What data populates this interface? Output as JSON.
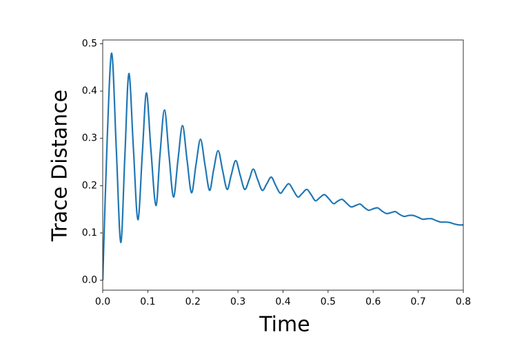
{
  "chart_data": {
    "type": "line",
    "x_label": "Time",
    "y_label": "Trace Distance",
    "color": "#1f77b4",
    "xlim": [
      0,
      0.8
    ],
    "ylim": [
      -0.021,
      0.508
    ],
    "xticks": [
      {
        "value": 0,
        "label": "0.0"
      },
      0.1,
      0.2,
      0.3,
      0.4,
      0.5,
      0.6,
      0.7,
      0.8
    ],
    "yticks": [
      {
        "value": 0,
        "label": "0.0"
      },
      0.1,
      0.2,
      0.3,
      0.4,
      0.5
    ],
    "x": [
      0,
      0.01,
      0.02,
      0.03,
      0.04,
      0.049,
      0.058,
      0.068,
      0.078,
      0.088,
      0.097,
      0.107,
      0.118,
      0.127,
      0.137,
      0.147,
      0.157,
      0.167,
      0.177,
      0.187,
      0.197,
      0.207,
      0.217,
      0.227,
      0.237,
      0.246,
      0.256,
      0.266,
      0.276,
      0.285,
      0.295,
      0.305,
      0.315,
      0.325,
      0.334,
      0.344,
      0.354,
      0.364,
      0.374,
      0.384,
      0.394,
      0.403,
      0.413,
      0.423,
      0.433,
      0.443,
      0.453,
      0.463,
      0.472,
      0.482,
      0.492,
      0.502,
      0.512,
      0.521,
      0.531,
      0.541,
      0.551,
      0.561,
      0.571,
      0.58,
      0.59,
      0.6,
      0.61,
      0.62,
      0.63,
      0.64,
      0.649,
      0.659,
      0.669,
      0.679,
      0.689,
      0.7,
      0.71,
      0.72,
      0.73,
      0.74,
      0.75,
      0.76,
      0.77,
      0.78,
      0.79,
      0.8
    ],
    "values": [
      0,
      0.3,
      0.48,
      0.28,
      0.08,
      0.26,
      0.437,
      0.28,
      0.128,
      0.27,
      0.396,
      0.275,
      0.158,
      0.265,
      0.36,
      0.265,
      0.176,
      0.255,
      0.327,
      0.255,
      0.185,
      0.245,
      0.298,
      0.243,
      0.19,
      0.233,
      0.274,
      0.232,
      0.192,
      0.222,
      0.253,
      0.222,
      0.192,
      0.213,
      0.235,
      0.212,
      0.19,
      0.204,
      0.218,
      0.2,
      0.184,
      0.194,
      0.204,
      0.19,
      0.176,
      0.184,
      0.192,
      0.18,
      0.168,
      0.175,
      0.181,
      0.172,
      0.162,
      0.167,
      0.171,
      0.163,
      0.155,
      0.158,
      0.161,
      0.154,
      0.148,
      0.151,
      0.153,
      0.146,
      0.141,
      0.143,
      0.145,
      0.139,
      0.135,
      0.137,
      0.137,
      0.133,
      0.129,
      0.13,
      0.13,
      0.126,
      0.123,
      0.123,
      0.122,
      0.119,
      0.117,
      0.117
    ]
  }
}
